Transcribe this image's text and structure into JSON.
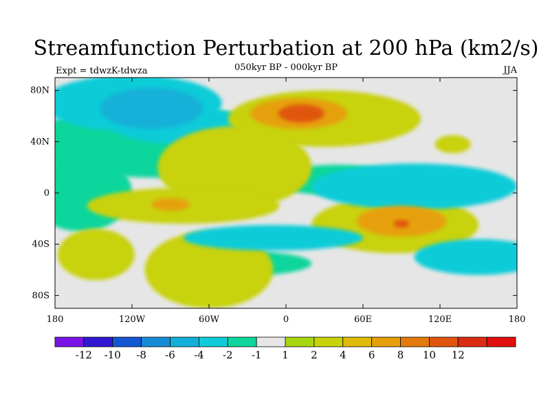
{
  "chart_data": {
    "type": "heatmap",
    "title": "Streamfunction Perturbation at 200 hPa (km2/s)",
    "left_string": "Expt = tdwzK-tdwza",
    "center_string": "050kyr BP - 000kyr BP",
    "right_string": "JJA",
    "x_ticks": [
      "180",
      "120W",
      "60W",
      "0",
      "60E",
      "120E",
      "180"
    ],
    "y_ticks": [
      "80N",
      "40N",
      "0",
      "40S",
      "80S"
    ],
    "xlim": [
      -180,
      180
    ],
    "ylim": [
      -90,
      90
    ],
    "colorbar_labels": [
      "-12",
      "-10",
      "-8",
      "-6",
      "-4",
      "-2",
      "-1",
      "1",
      "2",
      "4",
      "6",
      "8",
      "10",
      "12"
    ],
    "colorbar_colors": [
      "#7a14e6",
      "#3218d2",
      "#1457d2",
      "#168cd6",
      "#12b0d8",
      "#10ccd8",
      "#0ed69c",
      "#e6e6e6",
      "#a6d60e",
      "#c8d208",
      "#e0ba08",
      "#e6a00a",
      "#e27a0c",
      "#e0560e",
      "#dc2c12",
      "#e00e0e"
    ],
    "features": [
      {
        "lon": -105,
        "lat": 66,
        "rx": 40,
        "ry": 16,
        "level": -3
      },
      {
        "lon": -120,
        "lat": 70,
        "rx": 70,
        "ry": 22,
        "level": -2
      },
      {
        "lon": -80,
        "lat": 52,
        "rx": 55,
        "ry": 14,
        "level": -2
      },
      {
        "lon": 30,
        "lat": 58,
        "rx": 75,
        "ry": 22,
        "level": 2
      },
      {
        "lon": 10,
        "lat": 62,
        "rx": 38,
        "ry": 12,
        "level": 4
      },
      {
        "lon": 12,
        "lat": 62,
        "rx": 18,
        "ry": 7,
        "level": 6
      },
      {
        "lon": -40,
        "lat": 20,
        "rx": 60,
        "ry": 32,
        "level": 2
      },
      {
        "lon": -80,
        "lat": -10,
        "rx": 75,
        "ry": 14,
        "level": 2
      },
      {
        "lon": -90,
        "lat": -9,
        "rx": 15,
        "ry": 5,
        "level": 4
      },
      {
        "lon": 85,
        "lat": -25,
        "rx": 65,
        "ry": 22,
        "level": 2
      },
      {
        "lon": 90,
        "lat": -22,
        "rx": 35,
        "ry": 12,
        "level": 4
      },
      {
        "lon": 90,
        "lat": -24,
        "rx": 6,
        "ry": 3,
        "level": 6
      },
      {
        "lon": -60,
        "lat": -60,
        "rx": 50,
        "ry": 30,
        "level": 2
      },
      {
        "lon": -148,
        "lat": -48,
        "rx": 30,
        "ry": 20,
        "level": 2
      },
      {
        "lon": 130,
        "lat": 38,
        "rx": 14,
        "ry": 7,
        "level": 2
      },
      {
        "lon": 100,
        "lat": 5,
        "rx": 80,
        "ry": 18,
        "level": -2
      },
      {
        "lon": -10,
        "lat": -35,
        "rx": 70,
        "ry": 10,
        "level": -2
      },
      {
        "lon": 150,
        "lat": -50,
        "rx": 50,
        "ry": 14,
        "level": -2
      }
    ]
  },
  "colors": {
    "background": "#ffffff",
    "map_background": "#e6e6e6",
    "coastline": "#000000"
  }
}
